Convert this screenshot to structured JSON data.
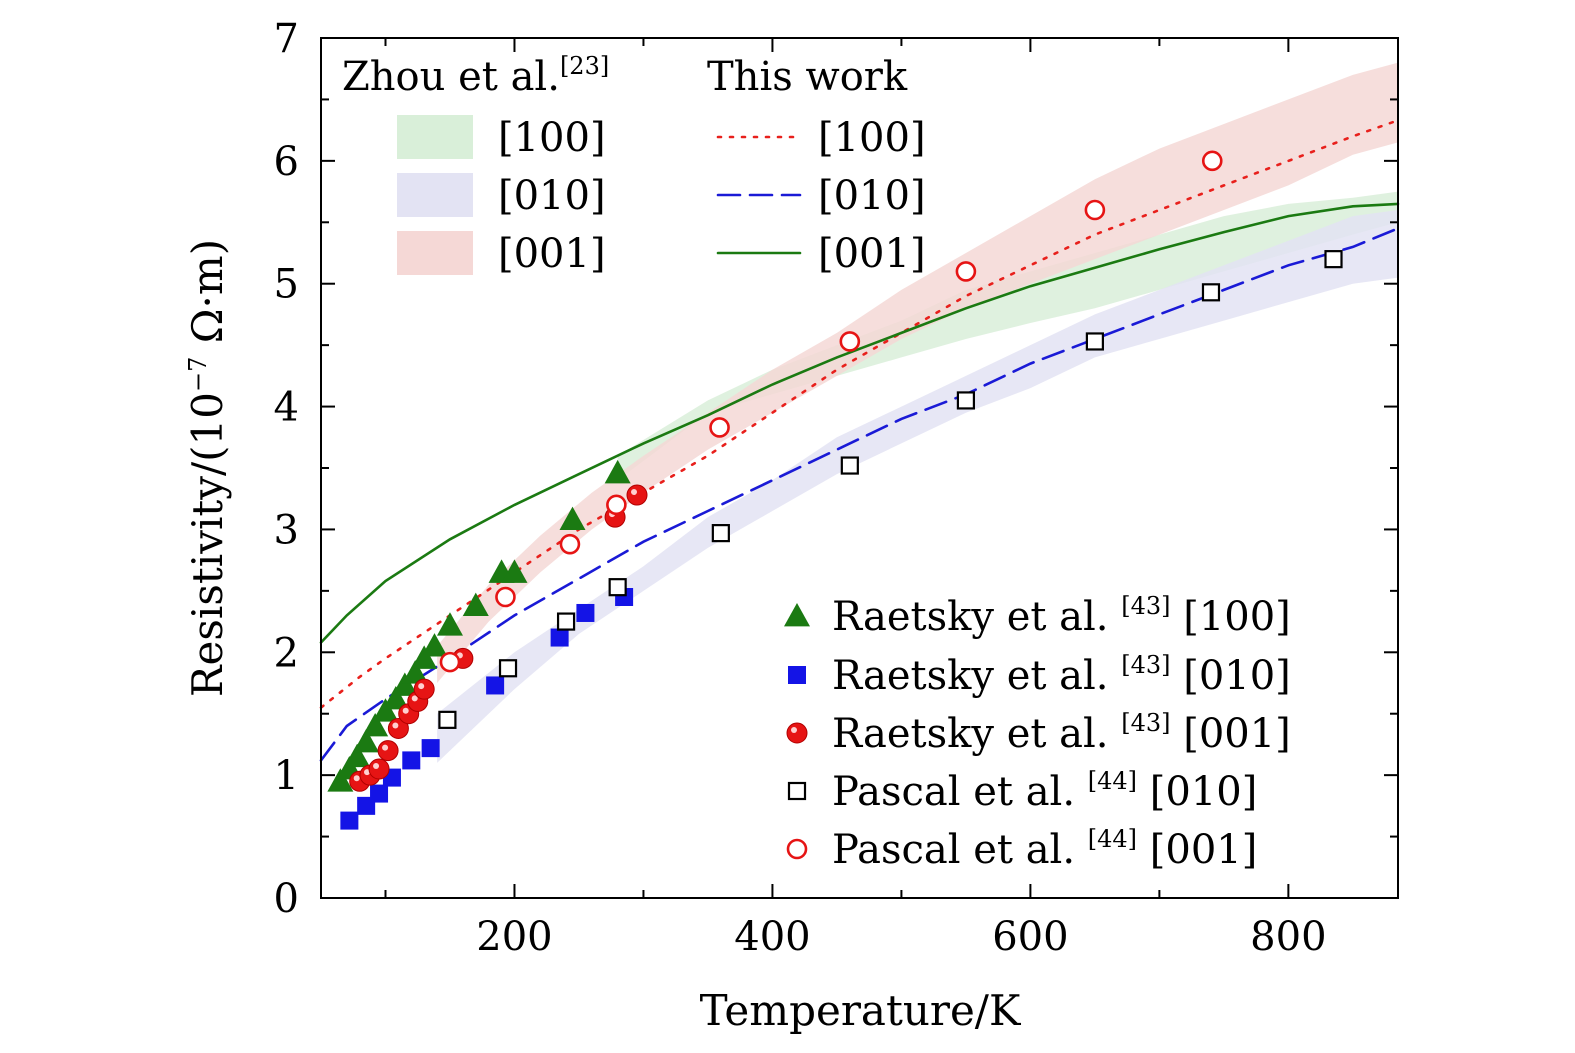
{
  "chart_data": {
    "type": "line",
    "title": "",
    "xlabel": "Temperature/K",
    "ylabel_prefix": "Resistivity/(10",
    "ylabel_exp": "−7",
    "ylabel_suffix": " Ω·m)",
    "xlim": [
      50,
      885
    ],
    "ylim": [
      0,
      7
    ],
    "x_ticks": [
      200,
      400,
      600,
      800
    ],
    "y_ticks": [
      0,
      1,
      2,
      3,
      4,
      5,
      6,
      7
    ],
    "legend_headers": {
      "zhou_main": "Zhou et al.",
      "zhou_ref": "[23]",
      "this_work": "This work"
    },
    "bands": [
      {
        "name": "[100]",
        "color": "#d9efd9",
        "x": [
          280,
          350,
          400,
          450,
          500,
          550,
          600,
          650,
          700,
          750,
          800,
          850,
          885
        ],
        "low": [
          3.4,
          3.95,
          4.1,
          4.25,
          4.4,
          4.55,
          4.68,
          4.8,
          4.95,
          5.1,
          5.25,
          5.4,
          5.5
        ],
        "high": [
          3.6,
          4.05,
          4.3,
          4.5,
          4.7,
          4.95,
          5.1,
          5.25,
          5.4,
          5.55,
          5.65,
          5.7,
          5.75
        ]
      },
      {
        "name": "[010]",
        "color": "#e3e3f3",
        "x": [
          140,
          200,
          250,
          300,
          350,
          400,
          450,
          500,
          550,
          600,
          650,
          700,
          750,
          800,
          850,
          885
        ],
        "low": [
          1.1,
          1.7,
          2.15,
          2.5,
          2.85,
          3.15,
          3.45,
          3.7,
          3.95,
          4.15,
          4.4,
          4.55,
          4.7,
          4.85,
          5.0,
          5.05
        ],
        "high": [
          1.5,
          2.0,
          2.35,
          2.7,
          3.1,
          3.4,
          3.75,
          4.0,
          4.25,
          4.5,
          4.75,
          4.95,
          5.15,
          5.35,
          5.55,
          5.6
        ]
      },
      {
        "name": "[001]",
        "color": "#f5d8d6",
        "x": [
          140,
          180,
          220,
          260,
          300,
          350,
          400,
          450,
          500,
          550,
          600,
          650,
          700,
          750,
          800,
          850,
          885
        ],
        "low": [
          1.75,
          2.25,
          2.65,
          3.0,
          3.3,
          3.65,
          3.95,
          4.25,
          4.55,
          4.8,
          5.0,
          5.2,
          5.4,
          5.6,
          5.8,
          6.05,
          6.15
        ],
        "high": [
          2.05,
          2.55,
          2.95,
          3.3,
          3.6,
          3.95,
          4.3,
          4.6,
          4.95,
          5.25,
          5.55,
          5.85,
          6.1,
          6.3,
          6.5,
          6.7,
          6.8
        ]
      }
    ],
    "series": [
      {
        "name": "[100]",
        "style": "dotted",
        "color": "#e8201c",
        "x": [
          50,
          80,
          100,
          150,
          200,
          250,
          300,
          350,
          400,
          450,
          500,
          550,
          600,
          650,
          700,
          750,
          800,
          850,
          885
        ],
        "y": [
          1.55,
          1.8,
          1.95,
          2.3,
          2.65,
          3.0,
          3.3,
          3.6,
          3.95,
          4.3,
          4.6,
          4.9,
          5.15,
          5.4,
          5.6,
          5.8,
          6.0,
          6.2,
          6.33
        ]
      },
      {
        "name": "[010]",
        "style": "dashed",
        "color": "#1a1ad6",
        "x": [
          50,
          70,
          100,
          150,
          200,
          250,
          300,
          350,
          400,
          450,
          500,
          550,
          600,
          650,
          700,
          750,
          800,
          850,
          885
        ],
        "y": [
          1.12,
          1.4,
          1.62,
          1.95,
          2.3,
          2.6,
          2.9,
          3.15,
          3.4,
          3.65,
          3.9,
          4.1,
          4.35,
          4.55,
          4.75,
          4.95,
          5.15,
          5.3,
          5.45
        ]
      },
      {
        "name": "[001]",
        "style": "solid",
        "color": "#1b7a12",
        "x": [
          50,
          70,
          100,
          150,
          200,
          250,
          300,
          350,
          400,
          450,
          500,
          550,
          600,
          650,
          700,
          750,
          800,
          850,
          885
        ],
        "y": [
          2.08,
          2.3,
          2.58,
          2.92,
          3.2,
          3.45,
          3.7,
          3.93,
          4.18,
          4.4,
          4.6,
          4.8,
          4.98,
          5.13,
          5.28,
          5.42,
          5.55,
          5.63,
          5.65
        ]
      }
    ],
    "markers": [
      {
        "name": "Raetsky et al.",
        "ref": "[43]",
        "dir": "[100]",
        "shape": "triangle",
        "color": "#1b7a12",
        "x": [
          65,
          72,
          78,
          85,
          92,
          100,
          108,
          115,
          123,
          130,
          138,
          150,
          170,
          190,
          200,
          245,
          280
        ],
        "y": [
          0.95,
          1.05,
          1.15,
          1.27,
          1.4,
          1.52,
          1.62,
          1.73,
          1.83,
          1.95,
          2.05,
          2.22,
          2.38,
          2.65,
          2.65,
          3.08,
          3.46
        ]
      },
      {
        "name": "Raetsky et al.",
        "ref": "[43]",
        "dir": "[010]",
        "shape": "square-filled",
        "color": "#1414e6",
        "x": [
          72,
          85,
          95,
          105,
          120,
          135,
          185,
          235,
          255,
          285
        ],
        "y": [
          0.63,
          0.75,
          0.85,
          0.98,
          1.12,
          1.22,
          1.73,
          2.12,
          2.32,
          2.45
        ]
      },
      {
        "name": "Raetsky et al.",
        "ref": "[43]",
        "dir": "[001]",
        "shape": "circle-filled",
        "color": "#e61414",
        "x": [
          80,
          88,
          95,
          102,
          110,
          118,
          125,
          130,
          160,
          278,
          295
        ],
        "y": [
          0.95,
          1.0,
          1.05,
          1.2,
          1.38,
          1.5,
          1.6,
          1.7,
          1.95,
          3.1,
          3.28
        ]
      },
      {
        "name": "Pascal et al.",
        "ref": "[44]",
        "dir": "[010]",
        "shape": "square-open",
        "color": "#000000",
        "x": [
          148,
          195,
          240,
          280,
          360,
          460,
          550,
          650,
          740,
          835
        ],
        "y": [
          1.45,
          1.87,
          2.25,
          2.53,
          2.97,
          3.52,
          4.05,
          4.53,
          4.93,
          5.2
        ]
      },
      {
        "name": "Pascal et al.",
        "ref": "[44]",
        "dir": "[001]",
        "shape": "circle-open",
        "color": "#e61414",
        "x": [
          150,
          193,
          243,
          279,
          359,
          460,
          550,
          650,
          741
        ],
        "y": [
          1.92,
          2.45,
          2.88,
          3.2,
          3.83,
          4.53,
          5.1,
          5.6,
          6.0
        ]
      }
    ]
  }
}
